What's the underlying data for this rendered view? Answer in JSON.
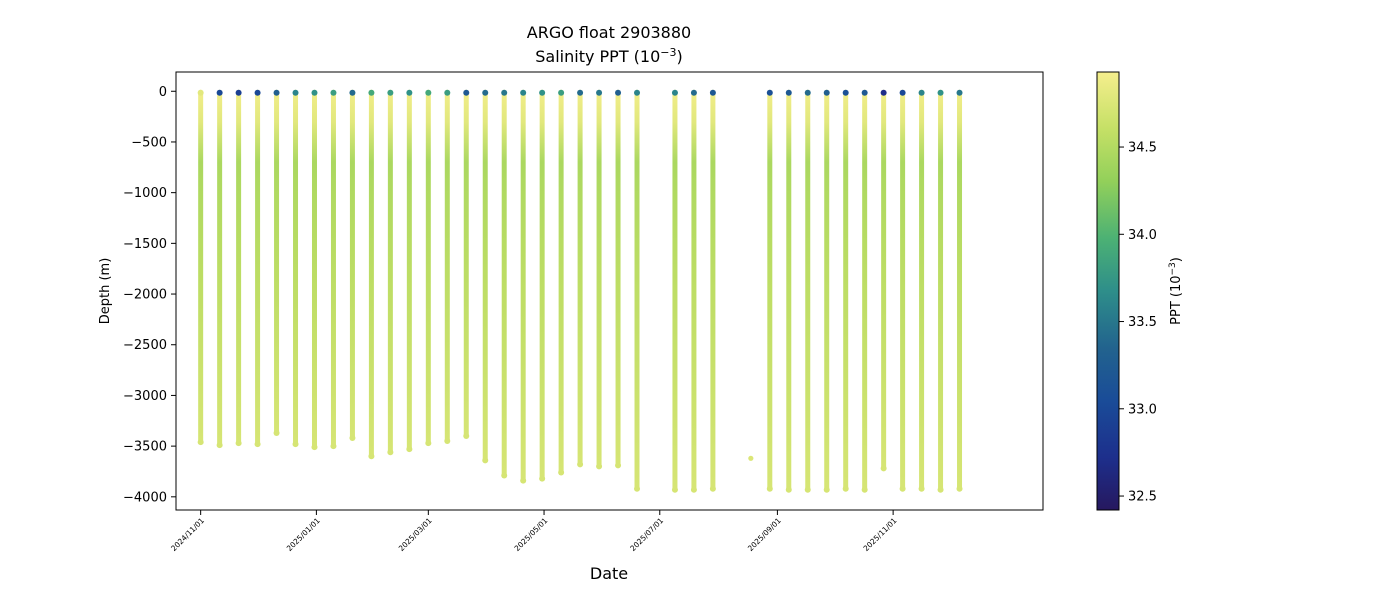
{
  "chart_data": {
    "type": "scatter",
    "title_line1": "ARGO float 2903880",
    "title_line2_prefix": "Salinity PPT (10",
    "title_line2_exp": "−3",
    "title_line2_suffix": ")",
    "xlabel": "Date",
    "ylabel": "Depth (m)",
    "x_ticks": [
      "2024/11/01",
      "2025/01/01",
      "2025/03/01",
      "2025/05/01",
      "2025/07/01",
      "2025/09/01",
      "2025/11/01"
    ],
    "y_ticks": [
      0,
      -500,
      -1000,
      -1500,
      -2000,
      -2500,
      -3000,
      -3500,
      -4000
    ],
    "y_tick_labels": [
      "0",
      "−500",
      "−1000",
      "−1500",
      "−2000",
      "−2500",
      "−3000",
      "−3500",
      "−4000"
    ],
    "xlim": [
      "2024-10-19",
      "2026-01-19"
    ],
    "ylim": [
      -4130,
      190
    ],
    "colorbar": {
      "label_prefix": "PPT (10",
      "label_exp": "−3",
      "label_suffix": ")",
      "colormap": "viridis-like (navy → green → pale yellow)",
      "min": 32.42,
      "max": 34.93,
      "ticks": [
        32.5,
        33.0,
        33.5,
        34.0,
        34.5
      ],
      "tick_labels": [
        "32.5",
        "33.0",
        "33.5",
        "34.0",
        "34.5"
      ]
    },
    "profiles": [
      {
        "date": "2024-11-01",
        "max_depth": -3460,
        "surface_salinity": 34.8
      },
      {
        "date": "2024-11-11",
        "max_depth": -3490,
        "surface_salinity": 33.0
      },
      {
        "date": "2024-11-21",
        "max_depth": -3470,
        "surface_salinity": 32.9
      },
      {
        "date": "2024-12-01",
        "max_depth": -3480,
        "surface_salinity": 33.0
      },
      {
        "date": "2024-12-11",
        "max_depth": -3370,
        "surface_salinity": 33.3
      },
      {
        "date": "2024-12-21",
        "max_depth": -3480,
        "surface_salinity": 33.6
      },
      {
        "date": "2024-12-31",
        "max_depth": -3510,
        "surface_salinity": 33.7
      },
      {
        "date": "2025-01-10",
        "max_depth": -3500,
        "surface_salinity": 33.8
      },
      {
        "date": "2025-01-20",
        "max_depth": -3420,
        "surface_salinity": 33.4
      },
      {
        "date": "2025-01-30",
        "max_depth": -3600,
        "surface_salinity": 33.9
      },
      {
        "date": "2025-02-09",
        "max_depth": -3560,
        "surface_salinity": 33.8
      },
      {
        "date": "2025-02-19",
        "max_depth": -3530,
        "surface_salinity": 33.7
      },
      {
        "date": "2025-03-01",
        "max_depth": -3470,
        "surface_salinity": 33.9
      },
      {
        "date": "2025-03-11",
        "max_depth": -3450,
        "surface_salinity": 33.8
      },
      {
        "date": "2025-03-21",
        "max_depth": -3400,
        "surface_salinity": 33.2
      },
      {
        "date": "2025-03-31",
        "max_depth": -3640,
        "surface_salinity": 33.4
      },
      {
        "date": "2025-04-10",
        "max_depth": -3790,
        "surface_salinity": 33.5
      },
      {
        "date": "2025-04-20",
        "max_depth": -3840,
        "surface_salinity": 33.6
      },
      {
        "date": "2025-04-30",
        "max_depth": -3820,
        "surface_salinity": 33.7
      },
      {
        "date": "2025-05-10",
        "max_depth": -3760,
        "surface_salinity": 33.8
      },
      {
        "date": "2025-05-20",
        "max_depth": -3680,
        "surface_salinity": 33.4
      },
      {
        "date": "2025-05-30",
        "max_depth": -3700,
        "surface_salinity": 33.5
      },
      {
        "date": "2025-06-09",
        "max_depth": -3690,
        "surface_salinity": 33.3
      },
      {
        "date": "2025-06-19",
        "max_depth": -3920,
        "surface_salinity": 33.6
      },
      {
        "date": "2025-07-09",
        "max_depth": -3930,
        "surface_salinity": 33.6
      },
      {
        "date": "2025-07-19",
        "max_depth": -3930,
        "surface_salinity": 33.4
      },
      {
        "date": "2025-07-29",
        "max_depth": -3920,
        "surface_salinity": 33.2
      },
      {
        "date": "2025-08-28",
        "max_depth": -3920,
        "surface_salinity": 33.1
      },
      {
        "date": "2025-09-07",
        "max_depth": -3930,
        "surface_salinity": 33.2
      },
      {
        "date": "2025-09-17",
        "max_depth": -3930,
        "surface_salinity": 33.4
      },
      {
        "date": "2025-09-27",
        "max_depth": -3930,
        "surface_salinity": 33.3
      },
      {
        "date": "2025-10-07",
        "max_depth": -3920,
        "surface_salinity": 33.1
      },
      {
        "date": "2025-10-17",
        "max_depth": -3930,
        "surface_salinity": 33.2
      },
      {
        "date": "2025-10-27",
        "max_depth": -3720,
        "surface_salinity": 32.7
      },
      {
        "date": "2025-11-06",
        "max_depth": -3920,
        "surface_salinity": 33.0
      },
      {
        "date": "2025-11-16",
        "max_depth": -3920,
        "surface_salinity": 33.6
      },
      {
        "date": "2025-11-26",
        "max_depth": -3930,
        "surface_salinity": 33.7
      },
      {
        "date": "2025-12-06",
        "max_depth": -3920,
        "surface_salinity": 33.5
      }
    ],
    "isolated_points": [
      {
        "date": "2025-08-18",
        "depth": -3620,
        "salinity": 34.75
      }
    ],
    "deep_salinity": 34.72,
    "mid_salinity": 34.45,
    "subsurface_salinity": 34.9,
    "grid": false
  }
}
